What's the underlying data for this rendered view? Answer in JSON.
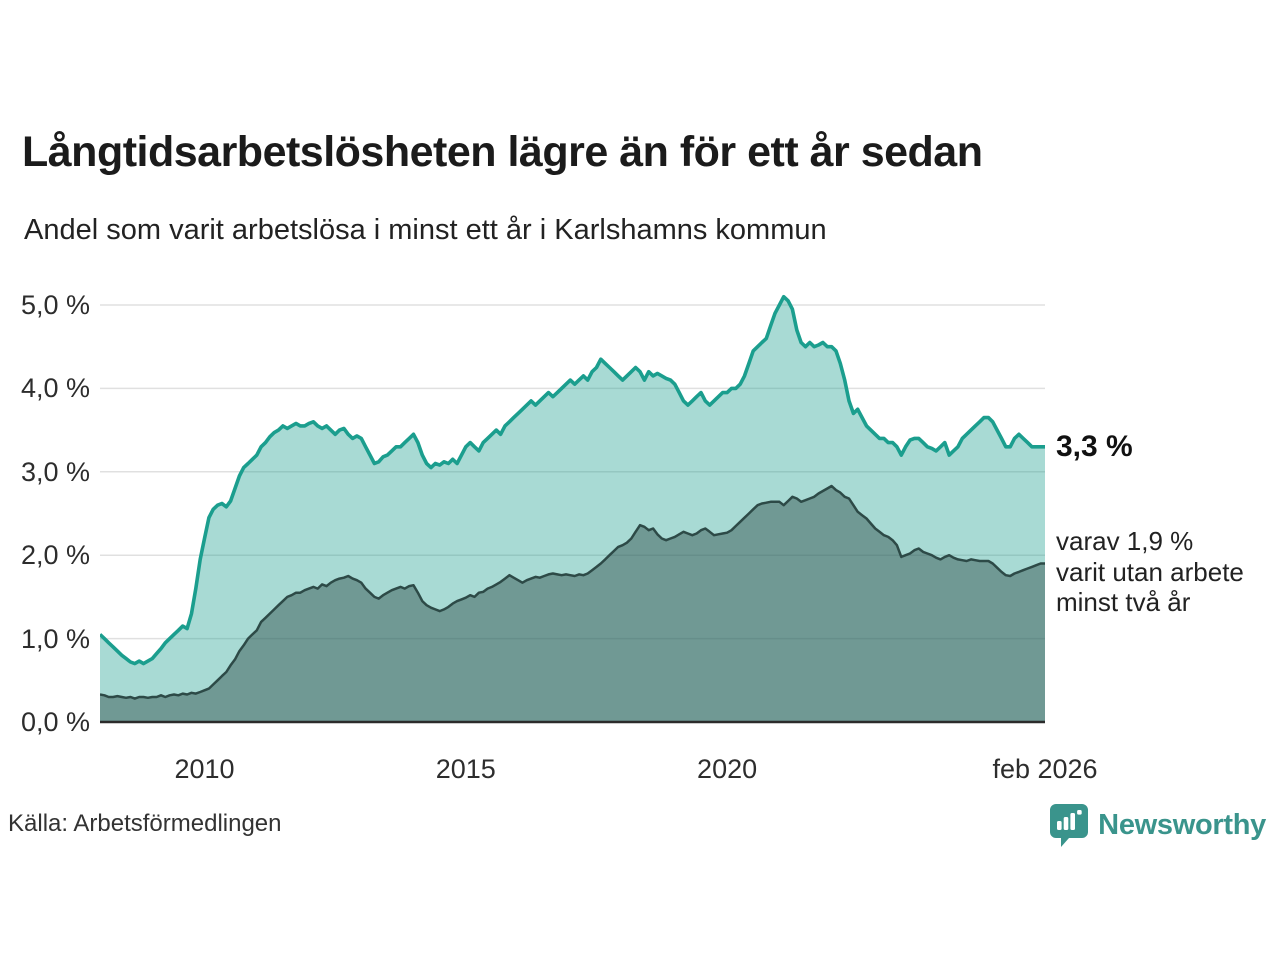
{
  "header": {
    "title": "Långtidsarbetslösheten lägre än för ett år sedan",
    "subtitle": "Andel som varit arbetslösa i minst ett år i Karlshamns kommun"
  },
  "annotations": {
    "latest_total": "3,3 %",
    "latest_sub_lines": [
      "varav 1,9 %",
      "varit utan arbete",
      "minst två år"
    ]
  },
  "footer": {
    "source": "Källa: Arbetsförmedlingen",
    "brand": "Newsworthy"
  },
  "colors": {
    "line_total": "#1b9e8e",
    "fill_total": "rgba(27,158,142,0.38)",
    "line_two_years": "#2d4a47",
    "fill_two_years": "rgba(45,74,71,0.45)",
    "grid": "#e0e0e0",
    "axis": "#2b2b2b",
    "brand_teal": "#3a948c"
  },
  "chart_data": {
    "type": "area",
    "title": "Långtidsarbetslösheten lägre än för ett år sedan",
    "subtitle": "Andel som varit arbetslösa i minst ett år i Karlshamns kommun",
    "unit": "percent",
    "x_start": "2008-01",
    "x_end": "2026-02",
    "points_per_year": 12,
    "ylim": [
      0,
      5.2
    ],
    "grid": true,
    "y_ticks": [
      {
        "value": 0,
        "label": "0,0 %"
      },
      {
        "value": 1,
        "label": "1,0 %"
      },
      {
        "value": 2,
        "label": "2,0 %"
      },
      {
        "value": 3,
        "label": "3,0 %"
      },
      {
        "value": 4,
        "label": "4,0 %"
      },
      {
        "value": 5,
        "label": "5,0 %"
      }
    ],
    "x_ticks": [
      {
        "label": "2010",
        "month_index": 24
      },
      {
        "label": "2015",
        "month_index": 84
      },
      {
        "label": "2020",
        "month_index": 144
      },
      {
        "label": "feb 2026",
        "month_index": 217
      }
    ],
    "series": [
      {
        "name": "Arbetslösa minst ett år",
        "latest_label": "3,3 %",
        "values": [
          1.05,
          1.0,
          0.95,
          0.9,
          0.85,
          0.8,
          0.76,
          0.72,
          0.7,
          0.73,
          0.7,
          0.73,
          0.76,
          0.82,
          0.88,
          0.95,
          1.0,
          1.05,
          1.1,
          1.15,
          1.12,
          1.3,
          1.6,
          1.95,
          2.2,
          2.45,
          2.55,
          2.6,
          2.62,
          2.58,
          2.65,
          2.8,
          2.95,
          3.05,
          3.1,
          3.15,
          3.2,
          3.3,
          3.35,
          3.42,
          3.47,
          3.5,
          3.55,
          3.52,
          3.55,
          3.58,
          3.55,
          3.55,
          3.58,
          3.6,
          3.55,
          3.52,
          3.55,
          3.5,
          3.45,
          3.5,
          3.52,
          3.45,
          3.4,
          3.43,
          3.4,
          3.3,
          3.2,
          3.1,
          3.12,
          3.18,
          3.2,
          3.25,
          3.3,
          3.3,
          3.35,
          3.4,
          3.45,
          3.35,
          3.2,
          3.1,
          3.05,
          3.1,
          3.08,
          3.12,
          3.1,
          3.15,
          3.1,
          3.2,
          3.3,
          3.35,
          3.3,
          3.25,
          3.35,
          3.4,
          3.45,
          3.5,
          3.45,
          3.55,
          3.6,
          3.65,
          3.7,
          3.75,
          3.8,
          3.85,
          3.8,
          3.85,
          3.9,
          3.95,
          3.9,
          3.95,
          4.0,
          4.05,
          4.1,
          4.05,
          4.1,
          4.15,
          4.1,
          4.2,
          4.25,
          4.35,
          4.3,
          4.25,
          4.2,
          4.15,
          4.1,
          4.15,
          4.2,
          4.25,
          4.2,
          4.1,
          4.2,
          4.15,
          4.18,
          4.15,
          4.12,
          4.1,
          4.05,
          3.95,
          3.85,
          3.8,
          3.85,
          3.9,
          3.95,
          3.85,
          3.8,
          3.85,
          3.9,
          3.95,
          3.95,
          4.0,
          4.0,
          4.05,
          4.15,
          4.3,
          4.45,
          4.5,
          4.55,
          4.6,
          4.75,
          4.9,
          5.0,
          5.1,
          5.05,
          4.95,
          4.7,
          4.55,
          4.5,
          4.55,
          4.5,
          4.52,
          4.55,
          4.5,
          4.5,
          4.45,
          4.3,
          4.1,
          3.85,
          3.7,
          3.75,
          3.65,
          3.55,
          3.5,
          3.45,
          3.4,
          3.4,
          3.35,
          3.35,
          3.3,
          3.2,
          3.3,
          3.38,
          3.4,
          3.4,
          3.35,
          3.3,
          3.28,
          3.25,
          3.3,
          3.35,
          3.2,
          3.25,
          3.3,
          3.4,
          3.45,
          3.5,
          3.55,
          3.6,
          3.65,
          3.65,
          3.6,
          3.5,
          3.4,
          3.3,
          3.3,
          3.4,
          3.45,
          3.4,
          3.35,
          3.3,
          3.3,
          3.3,
          3.3
        ]
      },
      {
        "name": "Varav utan arbete minst två år",
        "latest_label": "1,9 %",
        "values": [
          0.33,
          0.32,
          0.3,
          0.3,
          0.31,
          0.3,
          0.29,
          0.3,
          0.28,
          0.3,
          0.3,
          0.29,
          0.3,
          0.3,
          0.32,
          0.3,
          0.32,
          0.33,
          0.32,
          0.34,
          0.33,
          0.35,
          0.34,
          0.36,
          0.38,
          0.4,
          0.45,
          0.5,
          0.55,
          0.6,
          0.68,
          0.75,
          0.85,
          0.92,
          1.0,
          1.05,
          1.1,
          1.2,
          1.25,
          1.3,
          1.35,
          1.4,
          1.45,
          1.5,
          1.52,
          1.55,
          1.55,
          1.58,
          1.6,
          1.62,
          1.6,
          1.65,
          1.63,
          1.67,
          1.7,
          1.72,
          1.73,
          1.75,
          1.72,
          1.7,
          1.67,
          1.6,
          1.55,
          1.5,
          1.48,
          1.52,
          1.55,
          1.58,
          1.6,
          1.62,
          1.6,
          1.63,
          1.64,
          1.55,
          1.45,
          1.4,
          1.37,
          1.35,
          1.33,
          1.35,
          1.38,
          1.42,
          1.45,
          1.47,
          1.49,
          1.52,
          1.5,
          1.55,
          1.56,
          1.6,
          1.62,
          1.65,
          1.68,
          1.72,
          1.76,
          1.73,
          1.7,
          1.67,
          1.7,
          1.72,
          1.74,
          1.73,
          1.75,
          1.77,
          1.78,
          1.77,
          1.76,
          1.77,
          1.76,
          1.75,
          1.77,
          1.76,
          1.78,
          1.82,
          1.86,
          1.9,
          1.95,
          2.0,
          2.05,
          2.1,
          2.12,
          2.15,
          2.2,
          2.28,
          2.36,
          2.34,
          2.3,
          2.32,
          2.25,
          2.2,
          2.18,
          2.2,
          2.22,
          2.25,
          2.28,
          2.26,
          2.24,
          2.26,
          2.3,
          2.32,
          2.28,
          2.24,
          2.25,
          2.26,
          2.27,
          2.3,
          2.35,
          2.4,
          2.45,
          2.5,
          2.55,
          2.6,
          2.62,
          2.63,
          2.64,
          2.64,
          2.64,
          2.6,
          2.65,
          2.7,
          2.68,
          2.64,
          2.66,
          2.68,
          2.7,
          2.74,
          2.77,
          2.8,
          2.83,
          2.78,
          2.75,
          2.7,
          2.68,
          2.6,
          2.52,
          2.48,
          2.44,
          2.38,
          2.32,
          2.28,
          2.24,
          2.22,
          2.18,
          2.12,
          1.98,
          2.0,
          2.02,
          2.06,
          2.08,
          2.04,
          2.02,
          2.0,
          1.97,
          1.95,
          1.98,
          2.0,
          1.97,
          1.95,
          1.94,
          1.93,
          1.95,
          1.94,
          1.93,
          1.93,
          1.93,
          1.9,
          1.85,
          1.8,
          1.76,
          1.75,
          1.78,
          1.8,
          1.82,
          1.84,
          1.86,
          1.88,
          1.9,
          1.9
        ]
      }
    ]
  }
}
